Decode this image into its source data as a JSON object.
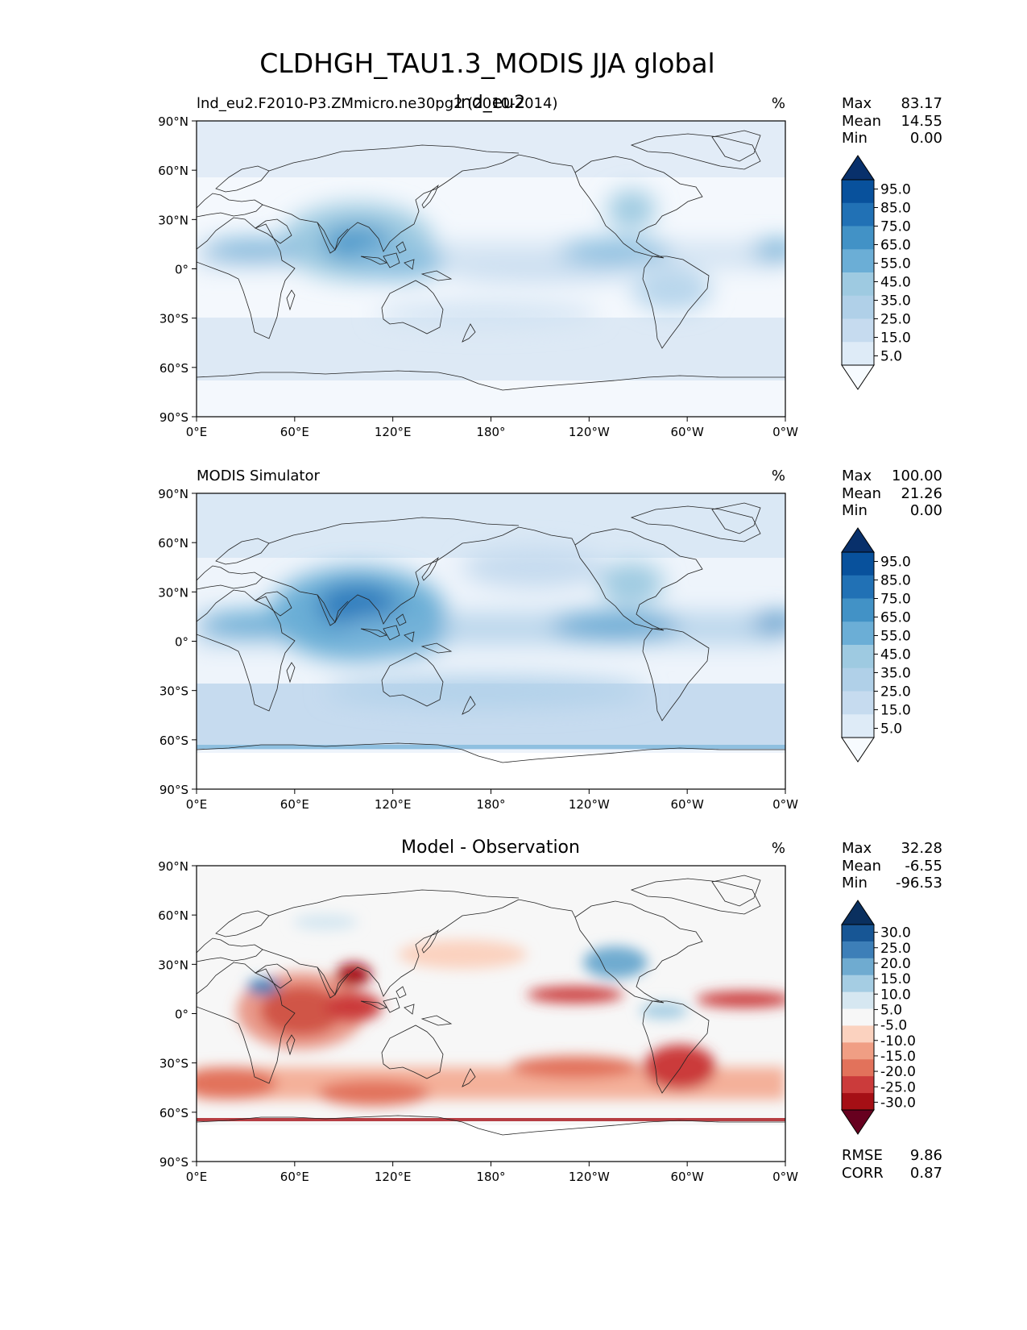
{
  "figure": {
    "title": "CLDHGH_TAU1.3_MODIS JJA global",
    "lat_ticks": [
      "90°N",
      "60°N",
      "30°N",
      "0°",
      "30°S",
      "60°S",
      "90°S"
    ],
    "lon_ticks": [
      "0°E",
      "60°E",
      "120°E",
      "180°",
      "120°W",
      "60°W",
      "0°W"
    ]
  },
  "panels": [
    {
      "left_title": "lnd_eu2.F2010-P3.ZMmicro.ne30pg2 (2010-2014)",
      "center_title": "lnd_eu2",
      "units": "%",
      "stats": [
        {
          "label": "Max",
          "value": "83.17"
        },
        {
          "label": "Mean",
          "value": "14.55"
        },
        {
          "label": "Min",
          "value": "0.00"
        }
      ],
      "colorbar_ticks": [
        "95.0",
        "85.0",
        "75.0",
        "65.0",
        "55.0",
        "45.0",
        "35.0",
        "25.0",
        "15.0",
        "5.0"
      ]
    },
    {
      "left_title": "MODIS Simulator",
      "center_title": "",
      "units": "%",
      "stats": [
        {
          "label": "Max",
          "value": "100.00"
        },
        {
          "label": "Mean",
          "value": "21.26"
        },
        {
          "label": "Min",
          "value": "0.00"
        }
      ],
      "colorbar_ticks": [
        "95.0",
        "85.0",
        "75.0",
        "65.0",
        "55.0",
        "45.0",
        "35.0",
        "25.0",
        "15.0",
        "5.0"
      ]
    },
    {
      "left_title": "",
      "center_title": "Model - Observation",
      "units": "%",
      "stats": [
        {
          "label": "Max",
          "value": "32.28"
        },
        {
          "label": "Mean",
          "value": "-6.55"
        },
        {
          "label": "Min",
          "value": "-96.53"
        }
      ],
      "colorbar_ticks": [
        "30.0",
        "25.0",
        "20.0",
        "15.0",
        "10.0",
        "5.0",
        "-5.0",
        "-10.0",
        "-15.0",
        "-20.0",
        "-25.0",
        "-30.0"
      ],
      "metrics": [
        {
          "label": "RMSE",
          "value": "9.86"
        },
        {
          "label": "CORR",
          "value": "0.87"
        }
      ]
    }
  ],
  "colors": {
    "blues": [
      "#f7fbff",
      "#deebf7",
      "#c6dbef",
      "#b0d0e8",
      "#9ecae1",
      "#6baed6",
      "#4292c6",
      "#2171b5",
      "#08519c",
      "#08306b"
    ],
    "diverging": [
      "#67001f",
      "#a50f15",
      "#cb3b3b",
      "#e2725b",
      "#f09e84",
      "#fbd2bf",
      "#f7f7f7",
      "#d6e7f1",
      "#a5cde3",
      "#6fabd0",
      "#3d7fb8",
      "#175695",
      "#0a305f"
    ]
  }
}
